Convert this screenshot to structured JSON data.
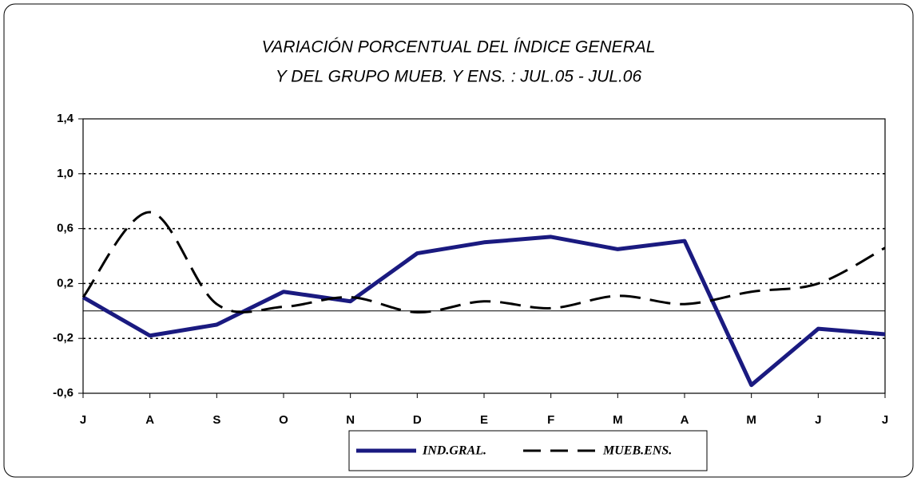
{
  "chart_data": {
    "type": "line",
    "title": [
      "VARIACIÓN PORCENTUAL DEL ÍNDICE GENERAL",
      "Y DEL GRUPO MUEB. Y ENS. : JUL.05 - JUL.06"
    ],
    "categories": [
      "J",
      "A",
      "S",
      "O",
      "N",
      "D",
      "E",
      "F",
      "M",
      "A",
      "M",
      "J",
      "J"
    ],
    "series": [
      {
        "name": "IND.GRAL.",
        "color": "#1a1a80",
        "line_style": "solid",
        "smooth": false,
        "values": [
          0.1,
          -0.18,
          -0.1,
          0.14,
          0.07,
          0.42,
          0.5,
          0.54,
          0.45,
          0.51,
          -0.54,
          -0.13,
          -0.17
        ]
      },
      {
        "name": "MUEB.ENS.",
        "color": "#000000",
        "line_style": "dashed",
        "smooth": true,
        "values": [
          0.1,
          0.72,
          0.05,
          0.03,
          0.1,
          -0.01,
          0.07,
          0.02,
          0.11,
          0.05,
          0.14,
          0.2,
          0.46
        ]
      }
    ],
    "ylim": [
      -0.6,
      1.4
    ],
    "yticks": [
      {
        "value": -0.6,
        "label": "-0,6"
      },
      {
        "value": -0.2,
        "label": "-0,2"
      },
      {
        "value": 0.2,
        "label": "0,2"
      },
      {
        "value": 0.6,
        "label": "0,6"
      },
      {
        "value": 1.0,
        "label": "1,0"
      },
      {
        "value": 1.4,
        "label": "1,4"
      }
    ],
    "grid": true,
    "legend": "bottom"
  }
}
